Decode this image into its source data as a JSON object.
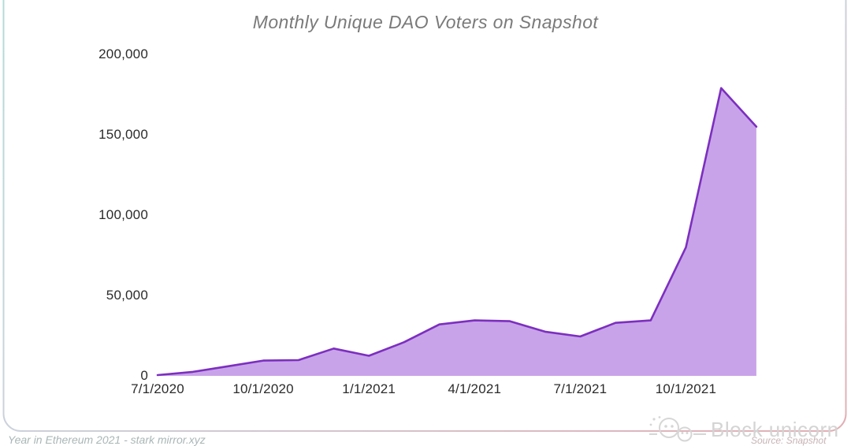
{
  "chart_data": {
    "type": "area",
    "title": "Monthly Unique DAO Voters on Snapshot",
    "x": [
      "7/1/2020",
      "8/1/2020",
      "9/1/2020",
      "10/1/2020",
      "11/1/2020",
      "12/1/2020",
      "1/1/2021",
      "2/1/2021",
      "3/1/2021",
      "4/1/2021",
      "5/1/2021",
      "6/1/2021",
      "7/1/2021",
      "8/1/2021",
      "9/1/2021",
      "10/1/2021",
      "11/1/2021",
      "12/1/2021"
    ],
    "values": [
      500,
      2500,
      6000,
      9500,
      9800,
      17000,
      12500,
      21000,
      32000,
      34500,
      34000,
      27500,
      24500,
      33000,
      34500,
      80000,
      179000,
      155000
    ],
    "ylim": [
      0,
      200000
    ],
    "y_ticks": [
      {
        "label": "0",
        "value": 0
      },
      {
        "label": "50,000",
        "value": 50000
      },
      {
        "label": "100,000",
        "value": 100000
      },
      {
        "label": "150,000",
        "value": 150000
      },
      {
        "label": "200,000",
        "value": 200000
      }
    ],
    "x_ticks": [
      {
        "label": "7/1/2020",
        "index": 0
      },
      {
        "label": "10/1/2020",
        "index": 3
      },
      {
        "label": "1/1/2021",
        "index": 6
      },
      {
        "label": "4/1/2021",
        "index": 9
      },
      {
        "label": "7/1/2021",
        "index": 12
      },
      {
        "label": "10/1/2021",
        "index": 15
      }
    ],
    "grid": false,
    "legend_position": "none",
    "line_color": "#7c2fbf",
    "fill_color": "#c9a3e9"
  },
  "card": {
    "background": "#ffffff",
    "border_color_left": "#b3dcd6",
    "border_color_middle": "#ccd2dc",
    "border_color_right": "#e2aeb4"
  },
  "footer": {
    "attribution": "Year in Ethereum 2021 - stark mirror.xyz",
    "source": "Source: Snapshot",
    "watermark": "Block unicorn"
  }
}
